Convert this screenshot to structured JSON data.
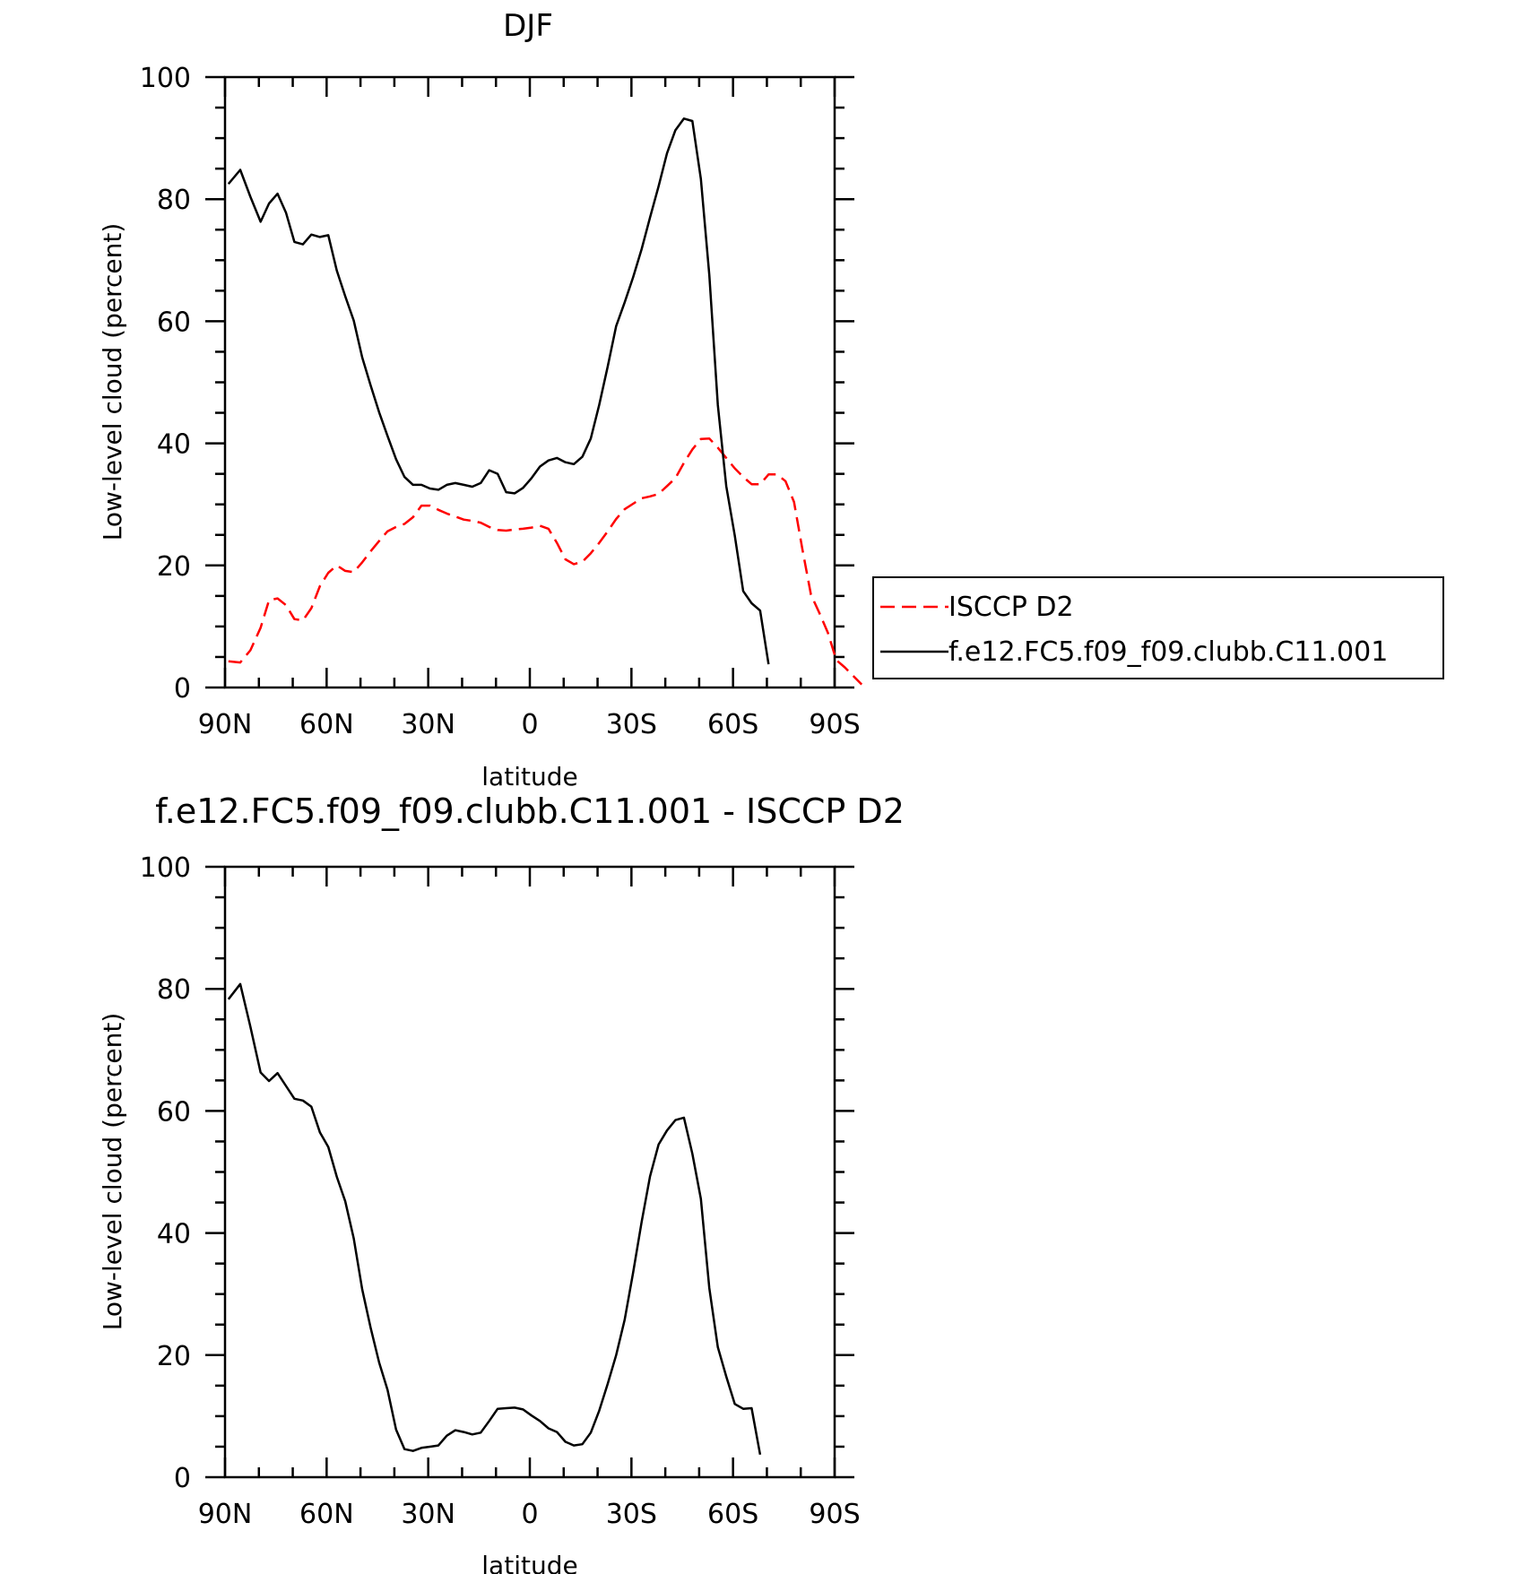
{
  "chart_data": [
    {
      "type": "line",
      "title": "DJF",
      "xlabel": "latitude",
      "ylabel": "Low-level cloud (percent)",
      "xlim": [
        90,
        -90
      ],
      "ylim": [
        0,
        100
      ],
      "x_tick_values": [
        90,
        60,
        30,
        0,
        -30,
        -60,
        -90
      ],
      "x_tick_labels": [
        "90N",
        "60N",
        "30N",
        "0",
        "30S",
        "60S",
        "90S"
      ],
      "y_tick_values": [
        0,
        20,
        40,
        60,
        80,
        100
      ],
      "y_tick_labels": [
        "0",
        "20",
        "40",
        "60",
        "80",
        "100"
      ],
      "legend": {
        "placement": "outside-right"
      },
      "series": [
        {
          "name": "ISCCP D2",
          "color": "#ff0000",
          "dash": "dashed",
          "points": [
            [
              89,
              4.3
            ],
            [
              85.5,
              4.1
            ],
            [
              82.5,
              6.1
            ],
            [
              79.5,
              9.8
            ],
            [
              77,
              14.3
            ],
            [
              74.5,
              14.6
            ],
            [
              72,
              13.5
            ],
            [
              69.5,
              11.2
            ],
            [
              67,
              11
            ],
            [
              64.5,
              13
            ],
            [
              62,
              16.6
            ],
            [
              59.5,
              18.8
            ],
            [
              57,
              20
            ],
            [
              54.5,
              19.1
            ],
            [
              52,
              18.9
            ],
            [
              49.5,
              20.5
            ],
            [
              47,
              22.3
            ],
            [
              44.5,
              24
            ],
            [
              42,
              25.6
            ],
            [
              39.5,
              26.3
            ],
            [
              37,
              26.8
            ],
            [
              34.5,
              27.9
            ],
            [
              32,
              29.8
            ],
            [
              29.5,
              29.8
            ],
            [
              27,
              29.1
            ],
            [
              24.5,
              28.5
            ],
            [
              22,
              28
            ],
            [
              19.5,
              27.5
            ],
            [
              17,
              27.3
            ],
            [
              14.5,
              27
            ],
            [
              12,
              26.3
            ],
            [
              9.5,
              25.8
            ],
            [
              7,
              25.7
            ],
            [
              4.5,
              25.9
            ],
            [
              2,
              26
            ],
            [
              -0.5,
              26.2
            ],
            [
              -3,
              26.5
            ],
            [
              -5.5,
              26
            ],
            [
              -8,
              23.7
            ],
            [
              -10.5,
              21
            ],
            [
              -13,
              20.2
            ],
            [
              -15.5,
              20.6
            ],
            [
              -18,
              22
            ],
            [
              -20.5,
              23.7
            ],
            [
              -23,
              25.6
            ],
            [
              -25.5,
              27.6
            ],
            [
              -28,
              29.2
            ],
            [
              -30.5,
              30.1
            ],
            [
              -33,
              31
            ],
            [
              -35.5,
              31.3
            ],
            [
              -38,
              31.7
            ],
            [
              -40.5,
              33
            ],
            [
              -43,
              34.3
            ],
            [
              -45.5,
              36.8
            ],
            [
              -48,
              39
            ],
            [
              -50.5,
              40.7
            ],
            [
              -53,
              40.8
            ],
            [
              -55.5,
              39.3
            ],
            [
              -58,
              37.6
            ],
            [
              -60.5,
              35.9
            ],
            [
              -63,
              34.5
            ],
            [
              -65.5,
              33.3
            ],
            [
              -68,
              33.3
            ],
            [
              -70.5,
              34.9
            ],
            [
              -73,
              34.9
            ],
            [
              -75.5,
              33.8
            ],
            [
              -78,
              30.4
            ],
            [
              -80.5,
              22.6
            ],
            [
              -83,
              15.2
            ],
            [
              -85.5,
              12.2
            ],
            [
              -88,
              9
            ],
            [
              -90.5,
              4.5
            ],
            [
              -93,
              3.3
            ],
            [
              -95.5,
              1.9
            ],
            [
              -98,
              0.5
            ]
          ]
        },
        {
          "name": "f.e12.FC5.f09_f09.clubb.C11.001",
          "color": "#000000",
          "dash": "solid",
          "points": [
            [
              89,
              82.5
            ],
            [
              85.5,
              84.8
            ],
            [
              82.5,
              80.4
            ],
            [
              79.5,
              76.3
            ],
            [
              77,
              79.3
            ],
            [
              74.5,
              80.9
            ],
            [
              72,
              77.8
            ],
            [
              69.5,
              73
            ],
            [
              67,
              72.6
            ],
            [
              64.5,
              74.2
            ],
            [
              62,
              73.8
            ],
            [
              59.5,
              74.1
            ],
            [
              57,
              68.3
            ],
            [
              54.5,
              64.1
            ],
            [
              52,
              60.1
            ],
            [
              49.5,
              54.1
            ],
            [
              47,
              49.5
            ],
            [
              44.5,
              45.1
            ],
            [
              42,
              41.2
            ],
            [
              39.5,
              37.4
            ],
            [
              37,
              34.5
            ],
            [
              34.5,
              33.2
            ],
            [
              32,
              33.2
            ],
            [
              29.5,
              32.6
            ],
            [
              27,
              32.4
            ],
            [
              24.5,
              33.2
            ],
            [
              22,
              33.5
            ],
            [
              19.5,
              33.2
            ],
            [
              17,
              32.9
            ],
            [
              14.5,
              33.5
            ],
            [
              12,
              35.6
            ],
            [
              9.5,
              35
            ],
            [
              7,
              32
            ],
            [
              4.5,
              31.8
            ],
            [
              2,
              32.7
            ],
            [
              -0.5,
              34.3
            ],
            [
              -3,
              36.2
            ],
            [
              -5.5,
              37.2
            ],
            [
              -8,
              37.6
            ],
            [
              -10.5,
              36.9
            ],
            [
              -13,
              36.6
            ],
            [
              -15.5,
              37.8
            ],
            [
              -18,
              40.8
            ],
            [
              -20.5,
              46.3
            ],
            [
              -23,
              52.6
            ],
            [
              -25.5,
              59.2
            ],
            [
              -28,
              63.1
            ],
            [
              -30.5,
              67.2
            ],
            [
              -33,
              71.8
            ],
            [
              -35.5,
              77
            ],
            [
              -38,
              82.1
            ],
            [
              -40.5,
              87.5
            ],
            [
              -43,
              91.3
            ],
            [
              -45.5,
              93.2
            ],
            [
              -48,
              92.8
            ],
            [
              -50.5,
              83.3
            ],
            [
              -53,
              67.6
            ],
            [
              -55.5,
              46.3
            ],
            [
              -58,
              33
            ],
            [
              -60.5,
              24.9
            ],
            [
              -63,
              15.8
            ],
            [
              -65.5,
              13.8
            ],
            [
              -68,
              12.6
            ],
            [
              -70.5,
              3.8
            ]
          ]
        }
      ]
    },
    {
      "type": "line",
      "title": "f.e12.FC5.f09_f09.clubb.C11.001 - ISCCP D2",
      "xlabel": "latitude",
      "ylabel": "Low-level cloud (percent)",
      "xlim": [
        90,
        -90
      ],
      "ylim": [
        0,
        100
      ],
      "x_tick_values": [
        90,
        60,
        30,
        0,
        -30,
        -60,
        -90
      ],
      "x_tick_labels": [
        "90N",
        "60N",
        "30N",
        "0",
        "30S",
        "60S",
        "90S"
      ],
      "y_tick_values": [
        0,
        20,
        40,
        60,
        80,
        100
      ],
      "y_tick_labels": [
        "0",
        "20",
        "40",
        "60",
        "80",
        "100"
      ],
      "series": [
        {
          "color": "#000000",
          "dash": "solid",
          "points": [
            [
              89,
              78.3
            ],
            [
              85.5,
              80.8
            ],
            [
              82.5,
              73.8
            ],
            [
              79.5,
              66.3
            ],
            [
              77,
              64.9
            ],
            [
              74.5,
              66.2
            ],
            [
              72,
              64.1
            ],
            [
              69.5,
              62
            ],
            [
              67,
              61.7
            ],
            [
              64.5,
              60.7
            ],
            [
              62,
              56.5
            ],
            [
              59.5,
              54.1
            ],
            [
              57,
              49.2
            ],
            [
              54.5,
              45.2
            ],
            [
              52,
              39.1
            ],
            [
              49.5,
              30.8
            ],
            [
              47,
              24.5
            ],
            [
              44.5,
              18.8
            ],
            [
              42,
              14.3
            ],
            [
              39.5,
              7.8
            ],
            [
              37,
              4.6
            ],
            [
              34.5,
              4.3
            ],
            [
              32,
              4.8
            ],
            [
              29.5,
              5
            ],
            [
              27,
              5.2
            ],
            [
              24.5,
              6.8
            ],
            [
              22,
              7.7
            ],
            [
              19.5,
              7.4
            ],
            [
              17,
              7
            ],
            [
              14.5,
              7.3
            ],
            [
              12,
              9.2
            ],
            [
              9.5,
              11.2
            ],
            [
              7,
              11.3
            ],
            [
              4.5,
              11.4
            ],
            [
              2,
              11.1
            ],
            [
              -0.5,
              10.1
            ],
            [
              -3,
              9.2
            ],
            [
              -5.5,
              8
            ],
            [
              -8,
              7.4
            ],
            [
              -10.5,
              5.8
            ],
            [
              -13,
              5.2
            ],
            [
              -15.5,
              5.4
            ],
            [
              -18,
              7.3
            ],
            [
              -20.5,
              10.9
            ],
            [
              -23,
              15.3
            ],
            [
              -25.5,
              20
            ],
            [
              -28,
              25.8
            ],
            [
              -30.5,
              33.5
            ],
            [
              -33,
              41.8
            ],
            [
              -35.5,
              49.3
            ],
            [
              -38,
              54.5
            ],
            [
              -40.5,
              56.8
            ],
            [
              -43,
              58.5
            ],
            [
              -45.5,
              58.9
            ],
            [
              -48,
              53
            ],
            [
              -50.5,
              45.6
            ],
            [
              -53,
              31
            ],
            [
              -55.5,
              21.3
            ],
            [
              -58,
              16.5
            ],
            [
              -60.5,
              12
            ],
            [
              -63,
              11.2
            ],
            [
              -65.5,
              11.3
            ],
            [
              -68,
              3.7
            ]
          ]
        }
      ]
    }
  ]
}
